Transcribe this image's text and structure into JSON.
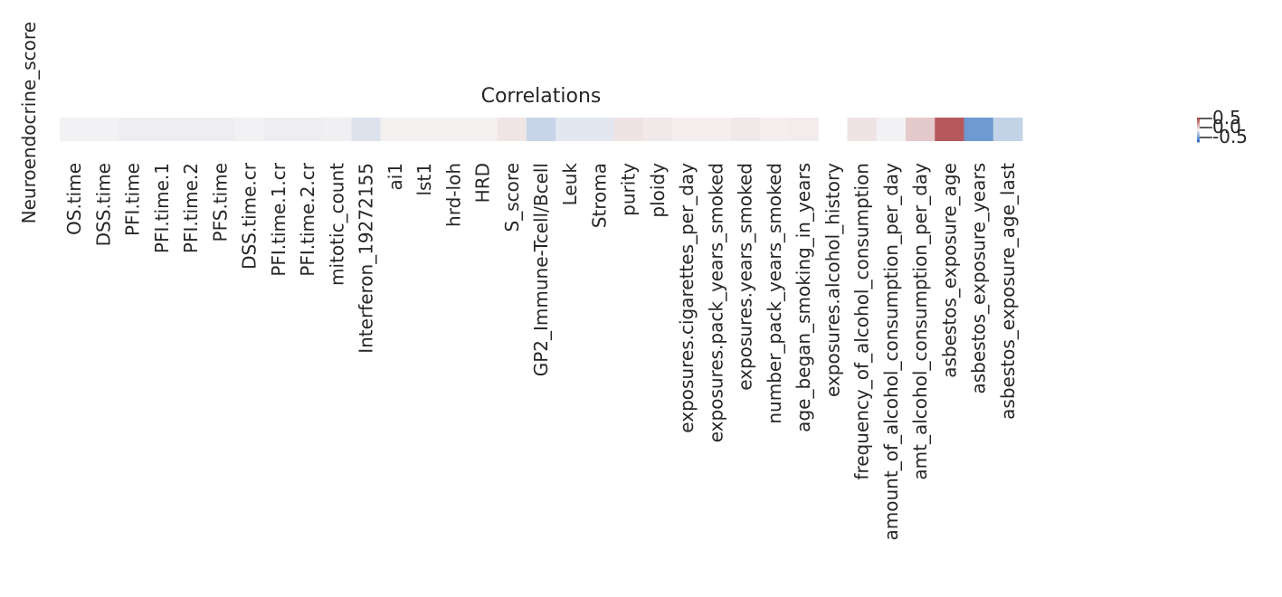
{
  "chart_data": {
    "type": "heatmap",
    "title": "Correlations",
    "row_labels": [
      "Neuroendocrine_score"
    ],
    "x_labels": [
      "OS.time",
      "DSS.time",
      "PFI.time",
      "PFI.time.1",
      "PFI.time.2",
      "PFS.time",
      "DSS.time.cr",
      "PFI.time.1.cr",
      "PFI.time.2.cr",
      "mitotic_count",
      "Interferon_19272155",
      "ai1",
      "lst1",
      "hrd-loh",
      "HRD",
      "S_score",
      "GP2_Immune-Tcell/Bcell",
      "Leuk",
      "Stroma",
      "purity",
      "ploidy",
      "exposures.cigarettes_per_day",
      "exposures.pack_years_smoked",
      "exposures.years_smoked",
      "number_pack_years_smoked",
      "age_began_smoking_in_years",
      "exposures.alcohol_history",
      "frequency_of_alcohol_consumption",
      "amount_of_alcohol_consumption_per_day",
      "amt_alcohol_consumption_per_day",
      "asbestos_exposure_age",
      "asbestos_exposure_years",
      "asbestos_exposure_age_last"
    ],
    "values": [
      [
        -0.02,
        -0.02,
        -0.04,
        -0.04,
        -0.04,
        -0.04,
        -0.02,
        -0.04,
        -0.04,
        -0.03,
        -0.12,
        0.02,
        0.02,
        0.02,
        0.02,
        0.08,
        -0.22,
        -0.09,
        -0.09,
        0.09,
        0.06,
        0.03,
        0.03,
        0.06,
        0.03,
        0.04,
        null,
        0.09,
        -0.02,
        0.22,
        0.82,
        -0.65,
        -0.24
      ]
    ],
    "color_scale": {
      "vmin": -1,
      "vmax": 1,
      "colormap": "vlag",
      "low_color": "#2369bd",
      "mid_color": "#f6f4f4",
      "high_color": "#a9373b"
    },
    "colorbar_ticks": [
      "0.5",
      "0.0",
      "-0.5"
    ]
  }
}
